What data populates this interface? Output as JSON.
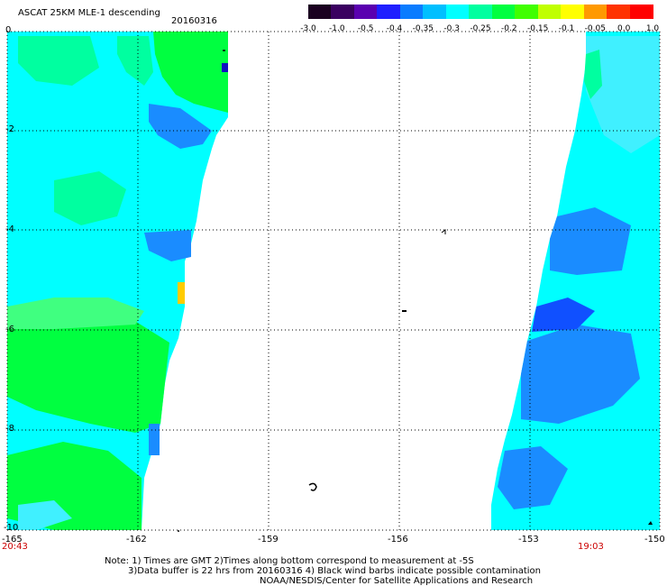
{
  "header": {
    "title": "ASCAT 25KM MLE-1 descending",
    "date": "20160316"
  },
  "colorbar": {
    "labels": [
      "-3.0",
      "-1.0",
      "-0.5",
      "-0.4",
      "-0.35",
      "-0.3",
      "-0.25",
      "-0.2",
      "-0.15",
      "-0.1",
      "-0.05",
      "0.0",
      "1.0"
    ],
    "colors": [
      "#1a0020",
      "#3a0060",
      "#5a00b0",
      "#1f1fff",
      "#0a7cff",
      "#00bfff",
      "#00ffff",
      "#00ffa0",
      "#00ff40",
      "#40ff00",
      "#c0ff00",
      "#ffff00",
      "#ff9900",
      "#ff3300",
      "#ff0000"
    ]
  },
  "map": {
    "y_axis_labels": [
      "0",
      "-2",
      "-4",
      "-6",
      "-8",
      "-10"
    ],
    "x_axis_labels": [
      "-165",
      "-162",
      "-159",
      "-156",
      "-153",
      "-150"
    ],
    "time_left": "20:43",
    "time_right": "19:03",
    "lat_range": [
      -10,
      0
    ],
    "lon_range": [
      -165,
      -150
    ],
    "swath_colors": {
      "cyan": "#00ffff",
      "cyan_light": "#40f0ff",
      "green": "#00ff40",
      "green_light": "#40ff80",
      "mint": "#00ffa0",
      "blue": "#1a8cff",
      "blue_dark": "#1050ff",
      "yellow": "#ffcc00",
      "navy": "#1010c0"
    }
  },
  "notes": {
    "line1": "Note: 1) Times are GMT 2)Times along bottom correspond to measurement at -5S",
    "line2": "3)Data buffer is 22 hrs from 20160316 4) Black wind barbs indicate possible contamination",
    "line3": "NOAA/NESDIS/Center for Satellite Applications and Research"
  }
}
